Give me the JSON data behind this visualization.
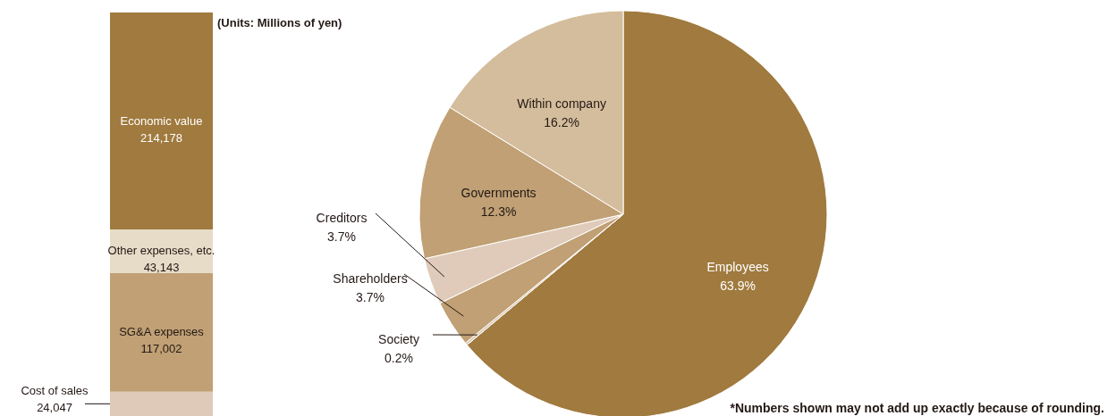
{
  "chart_data": [
    {
      "type": "bar",
      "stacked": true,
      "categories": [
        null
      ],
      "series": [
        {
          "name": "Cost of sales",
          "color": "#dfc9b9",
          "values": [
            24047
          ],
          "value_labels": [
            "24,047"
          ]
        },
        {
          "name": "SG&A expenses",
          "color": "#c0a074",
          "values": [
            117002
          ],
          "value_labels": [
            "117,002"
          ]
        },
        {
          "name": "Other expenses, etc.",
          "color": "#e7dcc8",
          "values": [
            43143
          ],
          "value_labels": [
            "43,143"
          ]
        },
        {
          "name": "Economic value",
          "color": "#a07a3e",
          "values": [
            214178
          ],
          "value_labels": [
            "214,178"
          ]
        }
      ],
      "annotations": [
        "(Units: Millions of yen)"
      ]
    },
    {
      "type": "pie",
      "categories": [
        "Employees",
        "Society",
        "Shareholders",
        "Creditors",
        "Governments",
        "Within company"
      ],
      "values": [
        63.9,
        0.2,
        3.7,
        3.7,
        12.3,
        16.2
      ],
      "value_labels": [
        "63.9%",
        "0.2%",
        "3.7%",
        "3.7%",
        "12.3%",
        "16.2%"
      ],
      "colors": [
        "#a07a3e",
        "#dcc8b4",
        "#c0a074",
        "#e0cbba",
        "#c0a074",
        "#d4bd9c"
      ],
      "annotations": [
        "*Numbers shown may not add up exactly because of rounding."
      ]
    }
  ]
}
